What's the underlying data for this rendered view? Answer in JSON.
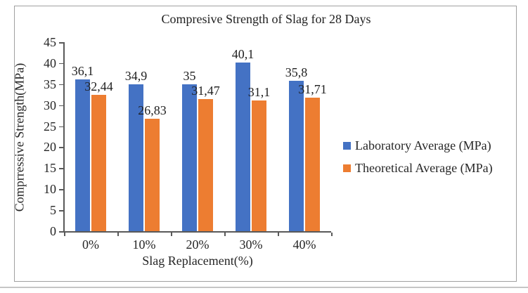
{
  "chart_data": {
    "type": "bar",
    "title": "Compresive Strength of Slag for 28 Days",
    "xlabel": "Slag Replacement(%)",
    "ylabel": "Comprressive Strength(MPa)",
    "categories": [
      "0%",
      "10%",
      "20%",
      "30%",
      "40%"
    ],
    "series": [
      {
        "name": "Laboratory Average (MPa)",
        "color": "#4472C4",
        "values": [
          36.1,
          34.9,
          35,
          40.1,
          35.8
        ],
        "labels": [
          "36,1",
          "34,9",
          "35",
          "40,1",
          "35,8"
        ]
      },
      {
        "name": "Theoretical Average (MPa)",
        "color": "#ED7D31",
        "values": [
          32.44,
          26.83,
          31.47,
          31.1,
          31.71
        ],
        "labels": [
          "32,44",
          "26,83",
          "31,47",
          "31,1",
          "31,71"
        ]
      }
    ],
    "ylim": [
      0,
      45
    ],
    "yticks": [
      0,
      5,
      10,
      15,
      20,
      25,
      30,
      35,
      40,
      45
    ],
    "grid": false,
    "legend_position": "right",
    "axis_color": "#595959",
    "text_color": "#262626",
    "frame_color": "#a0a0a0"
  }
}
